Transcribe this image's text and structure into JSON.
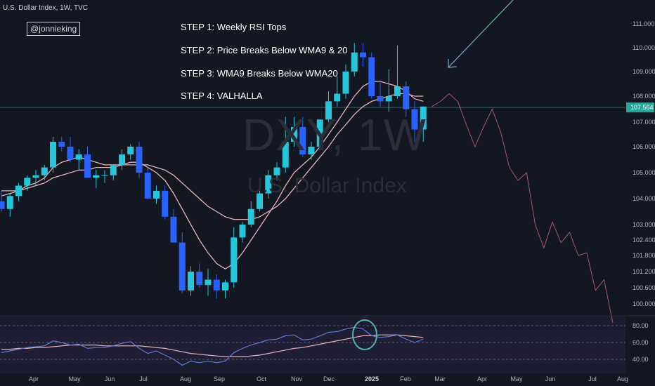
{
  "header": {
    "title": "U.S. Dollar Index, 1W, TVC"
  },
  "watermark": {
    "symbol": "DXY, 1W",
    "name": "U.S. Dollar Index"
  },
  "annotations": {
    "handle": "@jonnieking",
    "steps": [
      "STEP 1: Weekly RSI Tops",
      "STEP 2: Price Breaks Below WMA9 & 20",
      "STEP 3: WMA9 Breaks Below WMA20",
      "STEP 4: VALHALLA"
    ]
  },
  "colors": {
    "background": "#131722",
    "up": "#26c6da",
    "down": "#2962ff",
    "wma9": "#e8b4b8",
    "projection": "#a65a6a",
    "rsi": "#5b7bd5",
    "rsi_ma": "#e8b4b8",
    "highlight": "#4db6ac",
    "price_label": "#26a69a",
    "arrow": "#6fb3c8"
  },
  "chart_data": [
    {
      "type": "candlestick",
      "price_axis_ticks": [
        "111.000",
        "110.000",
        "109.000",
        "108.000",
        "107.000",
        "106.000",
        "105.000",
        "104.000",
        "103.000",
        "102.400",
        "101.800",
        "101.200",
        "100.600",
        "100.000"
      ],
      "x_tick_labels": [
        "Apr",
        "May",
        "Jun",
        "Jul",
        "Aug",
        "Sep",
        "Oct",
        "Nov",
        "Dec",
        "2025",
        "Feb",
        "Mar",
        "Apr",
        "May",
        "Jun",
        "Jul",
        "Aug"
      ],
      "last_price": "107.564",
      "ohlc": [
        [
          103.9,
          104.3,
          103.5,
          103.6
        ],
        [
          103.6,
          104.2,
          103.3,
          104.1
        ],
        [
          104.1,
          104.6,
          103.9,
          104.5
        ],
        [
          104.5,
          104.9,
          104.3,
          104.8
        ],
        [
          104.8,
          105.1,
          104.5,
          104.9
        ],
        [
          104.9,
          105.3,
          104.7,
          105.2
        ],
        [
          105.2,
          106.4,
          105.0,
          106.2
        ],
        [
          106.2,
          106.4,
          105.8,
          106.0
        ],
        [
          106.0,
          106.4,
          105.4,
          105.5
        ],
        [
          105.5,
          105.9,
          105.1,
          105.7
        ],
        [
          105.7,
          106.0,
          104.8,
          104.8
        ],
        [
          104.8,
          105.1,
          104.4,
          104.9
        ],
        [
          104.9,
          105.1,
          104.6,
          104.9
        ],
        [
          104.9,
          105.3,
          104.7,
          105.3
        ],
        [
          105.3,
          105.9,
          105.1,
          105.7
        ],
        [
          105.7,
          106.1,
          105.5,
          106.0
        ],
        [
          106.0,
          106.2,
          104.8,
          105.0
        ],
        [
          105.0,
          105.2,
          104.0,
          104.0
        ],
        [
          104.0,
          104.5,
          103.8,
          104.3
        ],
        [
          104.3,
          104.5,
          103.2,
          103.3
        ],
        [
          103.3,
          103.6,
          102.3,
          102.3
        ],
        [
          102.3,
          102.7,
          100.4,
          100.5
        ],
        [
          100.5,
          101.4,
          100.3,
          101.2
        ],
        [
          101.2,
          101.5,
          100.6,
          100.7
        ],
        [
          100.7,
          101.3,
          100.3,
          100.9
        ],
        [
          100.9,
          101.1,
          100.2,
          100.5
        ],
        [
          100.5,
          100.9,
          100.2,
          100.8
        ],
        [
          100.8,
          102.9,
          100.6,
          102.5
        ],
        [
          102.5,
          103.1,
          102.3,
          103.0
        ],
        [
          103.0,
          103.9,
          102.9,
          103.6
        ],
        [
          103.6,
          104.3,
          103.5,
          104.2
        ],
        [
          104.2,
          105.1,
          104.0,
          104.9
        ],
        [
          104.9,
          105.4,
          104.7,
          105.2
        ],
        [
          105.2,
          107.2,
          105.0,
          106.2
        ],
        [
          106.2,
          107.2,
          106.0,
          106.8
        ],
        [
          106.8,
          107.2,
          105.6,
          105.7
        ],
        [
          105.7,
          106.2,
          105.5,
          106.0
        ],
        [
          106.0,
          107.1,
          105.9,
          107.1
        ],
        [
          107.1,
          108.2,
          107.0,
          107.8
        ],
        [
          107.8,
          108.8,
          107.6,
          108.1
        ],
        [
          108.1,
          109.3,
          107.9,
          109.0
        ],
        [
          109.0,
          110.2,
          108.8,
          109.8
        ],
        [
          109.8,
          110.2,
          109.2,
          109.6
        ],
        [
          109.6,
          109.8,
          107.9,
          108.0
        ],
        [
          108.0,
          108.6,
          107.6,
          107.8
        ],
        [
          107.8,
          109.1,
          107.4,
          108.0
        ],
        [
          108.0,
          110.1,
          107.9,
          108.4
        ],
        [
          108.4,
          108.6,
          107.2,
          107.5
        ],
        [
          107.5,
          107.8,
          106.2,
          106.7
        ],
        [
          106.7,
          107.6,
          106.2,
          107.6
        ]
      ],
      "wma9": [
        104.1,
        104.2,
        104.3,
        104.5,
        104.6,
        104.8,
        105.2,
        105.4,
        105.5,
        105.6,
        105.5,
        105.4,
        105.3,
        105.3,
        105.3,
        105.4,
        105.4,
        105.2,
        105.0,
        104.7,
        104.2,
        103.6,
        103.0,
        102.4,
        101.9,
        101.5,
        101.3,
        101.5,
        101.9,
        102.4,
        102.9,
        103.4,
        103.9,
        104.5,
        105.0,
        105.3,
        105.6,
        106.0,
        106.5,
        107.0,
        107.5,
        108.0,
        108.4,
        108.6,
        108.6,
        108.5,
        108.4,
        108.2,
        107.9,
        107.8
      ],
      "wma20": [
        104.3,
        104.3,
        104.3,
        104.4,
        104.5,
        104.6,
        104.8,
        104.9,
        105.0,
        105.1,
        105.1,
        105.2,
        105.2,
        105.2,
        105.3,
        105.3,
        105.3,
        105.3,
        105.2,
        105.1,
        104.9,
        104.6,
        104.3,
        104.0,
        103.7,
        103.5,
        103.3,
        103.2,
        103.2,
        103.2,
        103.3,
        103.5,
        103.7,
        104.0,
        104.4,
        104.8,
        105.2,
        105.6,
        106.0,
        106.5,
        106.9,
        107.3,
        107.6,
        107.8,
        107.9,
        108.0,
        108.1,
        108.1,
        108.0,
        108.0
      ],
      "projection": [
        [
          50,
          107.6
        ],
        [
          51,
          107.8
        ],
        [
          52,
          108.1
        ],
        [
          53,
          107.8
        ],
        [
          54,
          106.9
        ],
        [
          55,
          106.0
        ],
        [
          56,
          106.8
        ],
        [
          57,
          107.5
        ],
        [
          58,
          106.6
        ],
        [
          59,
          105.2
        ],
        [
          60,
          104.7
        ],
        [
          61,
          105.0
        ],
        [
          62,
          103.0
        ],
        [
          63,
          102.1
        ],
        [
          64,
          103.1
        ],
        [
          65,
          102.3
        ],
        [
          66,
          102.7
        ],
        [
          67,
          101.8
        ],
        [
          68,
          101.9
        ],
        [
          69,
          100.5
        ],
        [
          70,
          100.9
        ],
        [
          71,
          99.3
        ]
      ]
    },
    {
      "type": "line",
      "name": "",
      "y_ticks": [
        "80.00",
        "60.00",
        "40.00"
      ],
      "ylim": [
        30,
        85
      ],
      "rsi": [
        48,
        50,
        52,
        54,
        55,
        56,
        62,
        60,
        57,
        58,
        53,
        54,
        54,
        56,
        59,
        61,
        53,
        47,
        50,
        45,
        40,
        33,
        38,
        36,
        38,
        36,
        38,
        48,
        53,
        57,
        60,
        63,
        64,
        68,
        69,
        63,
        64,
        68,
        72,
        73,
        76,
        78,
        76,
        68,
        66,
        67,
        69,
        64,
        60,
        64
      ],
      "rsi_ma": [
        52,
        52,
        53,
        53,
        54,
        54,
        55,
        56,
        57,
        57,
        57,
        57,
        56,
        56,
        56,
        56,
        56,
        55,
        54,
        53,
        51,
        49,
        47,
        46,
        45,
        44,
        43,
        43,
        43,
        44,
        45,
        47,
        49,
        51,
        53,
        54,
        56,
        58,
        60,
        62,
        64,
        66,
        68,
        68,
        69,
        69,
        69,
        68,
        67,
        66
      ]
    }
  ]
}
